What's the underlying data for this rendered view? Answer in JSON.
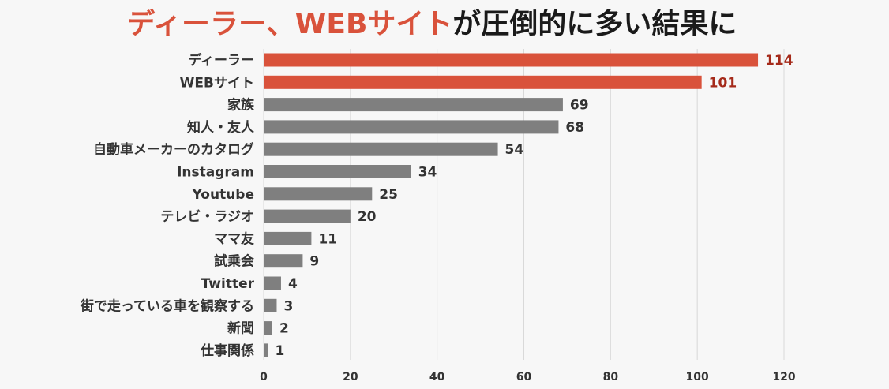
{
  "chart_data": {
    "type": "bar",
    "orientation": "horizontal",
    "title_parts": [
      {
        "text": "ディーラー、",
        "highlight": true
      },
      {
        "text": "WEBサイト",
        "highlight": true
      },
      {
        "text": "が圧倒的に多い結果に",
        "highlight": false
      }
    ],
    "categories": [
      "ディーラー",
      "WEBサイト",
      "家族",
      "知人・友人",
      "自動車メーカーのカタログ",
      "Instagram",
      "Youtube",
      "テレビ・ラジオ",
      "ママ友",
      "試乗会",
      "Twitter",
      "街で走っている車を観察する",
      "新聞",
      "仕事関係"
    ],
    "values": [
      114,
      101,
      69,
      68,
      54,
      34,
      25,
      20,
      11,
      9,
      4,
      3,
      2,
      1
    ],
    "highlighted_categories": [
      0,
      1
    ],
    "xlim": [
      0,
      120
    ],
    "xticks": [
      0,
      20,
      40,
      60,
      80,
      100,
      120
    ],
    "grid": true,
    "legend": "none",
    "colors": {
      "highlight_bar": "#d9523b",
      "bar": "#7f7f7f",
      "highlight_label": "#a52a1a",
      "label": "#333333",
      "title_highlight": "#d9523b",
      "title": "#1a1a1a",
      "grid": "#d9d9d9"
    }
  }
}
